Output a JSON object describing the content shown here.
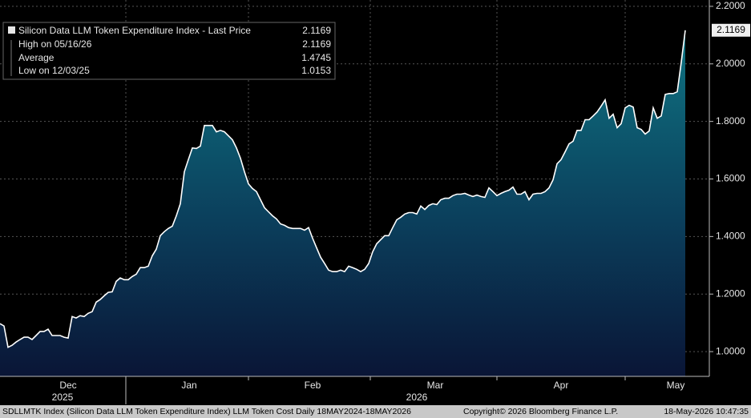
{
  "chart_data": {
    "type": "area",
    "legend": {
      "title": "Silicon Data LLM Token Expenditure Index - Last Price",
      "last_value": "2.1169",
      "rows": [
        {
          "label": "High on 05/16/26",
          "value": "2.1169"
        },
        {
          "label": "Average",
          "value": "1.4745"
        },
        {
          "label": "Low on 12/03/25",
          "value": "1.0153"
        }
      ]
    },
    "last_price_label": "2.1169",
    "last_price": 2.1169,
    "values": [
      1.097,
      1.089,
      1.015,
      1.022,
      1.033,
      1.042,
      1.05,
      1.05,
      1.042,
      1.056,
      1.07,
      1.07,
      1.078,
      1.056,
      1.056,
      1.056,
      1.05,
      1.047,
      1.122,
      1.117,
      1.125,
      1.122,
      1.133,
      1.139,
      1.172,
      1.181,
      1.194,
      1.206,
      1.208,
      1.244,
      1.256,
      1.25,
      1.25,
      1.261,
      1.269,
      1.292,
      1.292,
      1.297,
      1.333,
      1.356,
      1.403,
      1.417,
      1.428,
      1.436,
      1.472,
      1.514,
      1.625,
      1.667,
      1.708,
      1.706,
      1.714,
      1.786,
      1.786,
      1.786,
      1.764,
      1.769,
      1.764,
      1.75,
      1.736,
      1.708,
      1.672,
      1.625,
      1.583,
      1.567,
      1.556,
      1.528,
      1.5,
      1.486,
      1.472,
      1.461,
      1.444,
      1.439,
      1.431,
      1.428,
      1.428,
      1.428,
      1.422,
      1.431,
      1.394,
      1.361,
      1.328,
      1.306,
      1.283,
      1.278,
      1.278,
      1.283,
      1.278,
      1.297,
      1.292,
      1.286,
      1.278,
      1.286,
      1.306,
      1.347,
      1.375,
      1.389,
      1.403,
      1.403,
      1.431,
      1.458,
      1.467,
      1.478,
      1.483,
      1.483,
      1.478,
      1.506,
      1.494,
      1.508,
      1.514,
      1.511,
      1.528,
      1.533,
      1.533,
      1.542,
      1.547,
      1.547,
      1.55,
      1.544,
      1.539,
      1.544,
      1.539,
      1.536,
      1.569,
      1.556,
      1.542,
      1.55,
      1.556,
      1.561,
      1.572,
      1.547,
      1.547,
      1.556,
      1.528,
      1.547,
      1.55,
      1.55,
      1.556,
      1.569,
      1.597,
      1.653,
      1.667,
      1.694,
      1.722,
      1.731,
      1.769,
      1.769,
      1.806,
      1.806,
      1.819,
      1.833,
      1.853,
      1.875,
      1.811,
      1.825,
      1.778,
      1.792,
      1.847,
      1.856,
      1.85,
      1.778,
      1.772,
      1.756,
      1.767,
      1.847,
      1.811,
      1.819,
      1.894,
      1.897,
      1.897,
      1.903,
      2.006,
      2.1169
    ],
    "color": "#ffffff",
    "xlim": [
      0,
      177
    ],
    "xticks": [
      {
        "value": 17,
        "label": "Dec"
      },
      {
        "value": 47.2,
        "label": "Jan"
      },
      {
        "value": 78,
        "label": "Feb"
      },
      {
        "value": 108.6,
        "label": "Mar"
      },
      {
        "value": 140,
        "label": "Apr"
      },
      {
        "value": 168.6,
        "label": "May"
      }
    ],
    "xgrid": [
      31.4,
      62,
      92.4,
      124,
      156
    ],
    "year_ticks": [
      {
        "value": 15.6,
        "label": "2025"
      },
      {
        "value": 104,
        "label": "2026"
      }
    ],
    "year_separator": 31.4,
    "ylim": [
      0.914,
      2.222
    ],
    "yticks": [
      {
        "value": 1,
        "label": "1.0000"
      },
      {
        "value": 1.2,
        "label": "1.2000"
      },
      {
        "value": 1.4,
        "label": "1.4000"
      },
      {
        "value": 1.6,
        "label": "1.6000"
      },
      {
        "value": 1.8,
        "label": "1.8000"
      },
      {
        "value": 2,
        "label": "2.0000"
      },
      {
        "value": 2.2,
        "label": "2.2000"
      }
    ],
    "grid": true,
    "footer": {
      "left": "SDLLMTK Index (Silicon Data LLM Token Expenditure Index) LLM Token Cost Daily 18MAY2024-18MAY2026",
      "center": "Copyright© 2026 Bloomberg Finance L.P.",
      "right": "18-May-2026 10:47:35"
    }
  }
}
